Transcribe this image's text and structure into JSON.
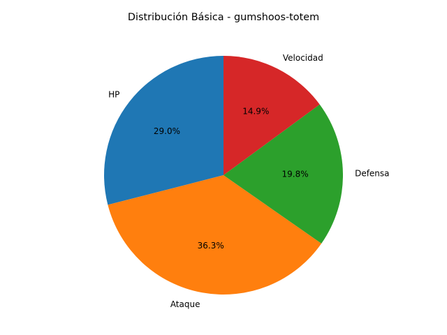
{
  "chart_data": {
    "type": "pie",
    "title": "Distribución Básica - gumshoos-totem",
    "slices": [
      {
        "label": "HP",
        "value": 29.0,
        "pct_text": "29.0%",
        "color": "#1f77b4"
      },
      {
        "label": "Ataque",
        "value": 36.3,
        "pct_text": "36.3%",
        "color": "#ff7f0e"
      },
      {
        "label": "Defensa",
        "value": 19.8,
        "pct_text": "19.8%",
        "color": "#2ca02c"
      },
      {
        "label": "Velocidad",
        "value": 14.9,
        "pct_text": "14.9%",
        "color": "#d62728"
      }
    ],
    "start_angle": 90,
    "direction": "counterclockwise",
    "legend": "none",
    "grid": false
  }
}
